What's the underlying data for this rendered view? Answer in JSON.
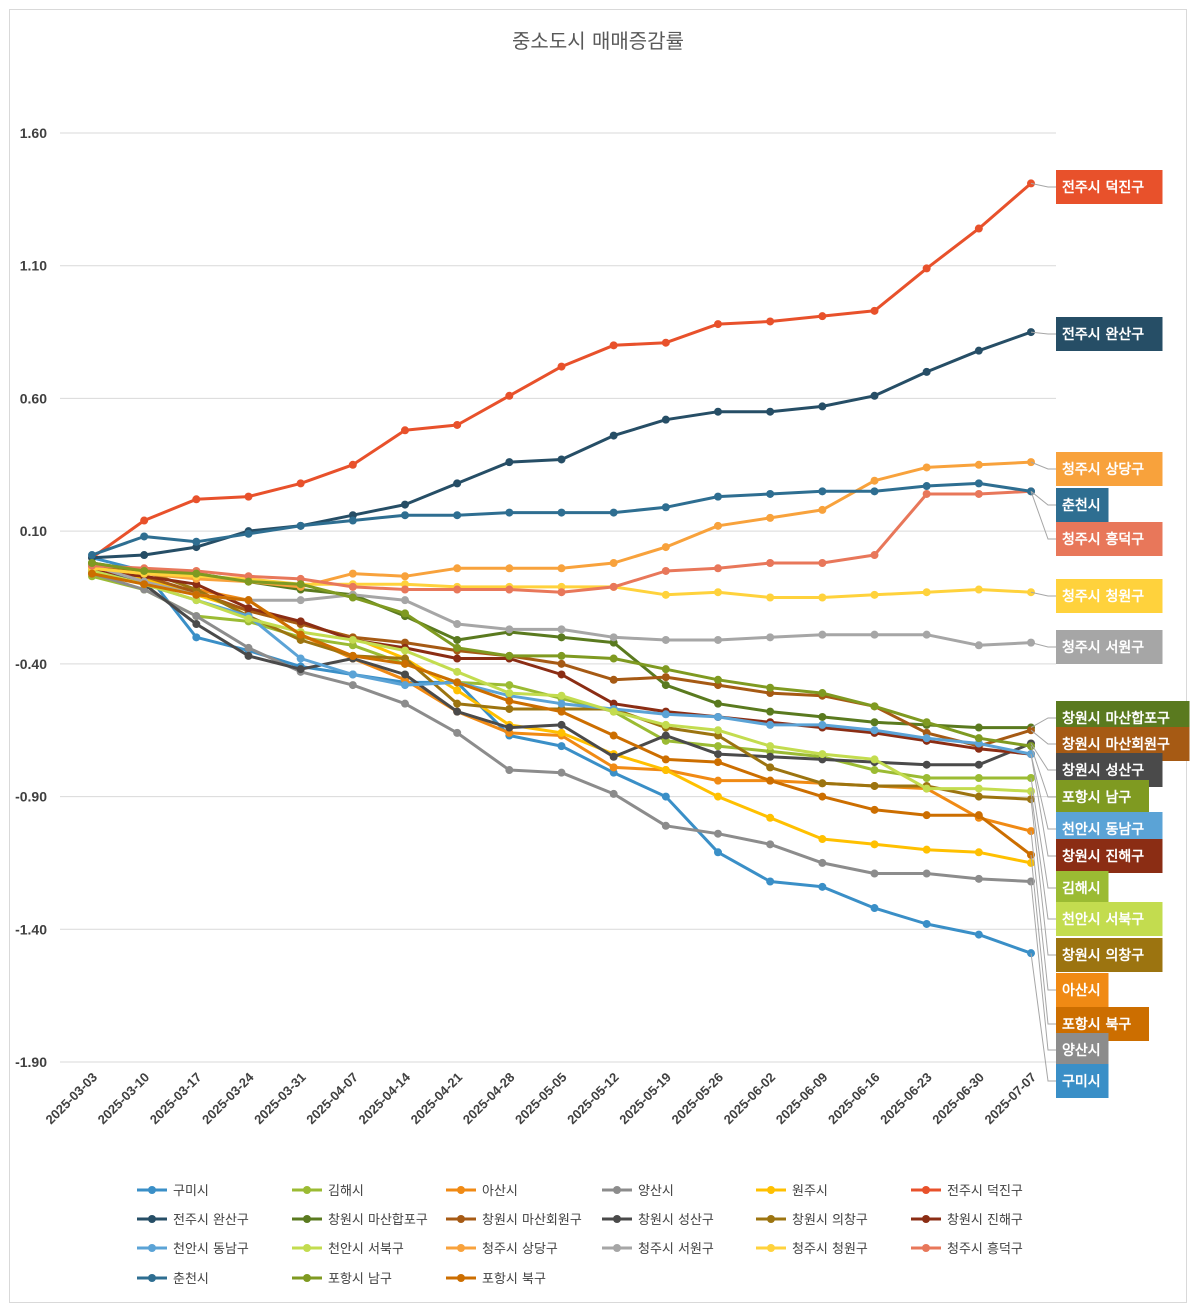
{
  "chart_data": {
    "type": "line",
    "title": "중소도시 매매증감률",
    "xlabel": "",
    "ylabel": "",
    "ylim": [
      -1.9,
      1.6
    ],
    "yticks": [
      "1.60",
      "1.10",
      "0.60",
      "0.10",
      "-0.40",
      "-0.90",
      "-1.40",
      "-1.90"
    ],
    "grid": true,
    "legend_position": "bottom",
    "categories": [
      "2025-03-03",
      "2025-03-10",
      "2025-03-17",
      "2025-03-24",
      "2025-03-31",
      "2025-04-07",
      "2025-04-14",
      "2025-04-21",
      "2025-04-28",
      "2025-05-05",
      "2025-05-12",
      "2025-05-19",
      "2025-05-26",
      "2025-06-02",
      "2025-06-09",
      "2025-06-16",
      "2025-06-23",
      "2025-06-30",
      "2025-07-07"
    ],
    "series": [
      {
        "name": "구미시",
        "color": "#3a8fc7",
        "values": [
          0.0,
          -0.05,
          -0.3,
          -0.35,
          -0.41,
          -0.44,
          -0.47,
          -0.47,
          -0.67,
          -0.71,
          -0.81,
          -0.9,
          -1.11,
          -1.22,
          -1.24,
          -1.32,
          -1.38,
          -1.42,
          -1.49
        ]
      },
      {
        "name": "김해시",
        "color": "#9bbb33",
        "values": [
          -0.07,
          -0.12,
          -0.22,
          -0.24,
          -0.3,
          -0.33,
          -0.4,
          -0.47,
          -0.48,
          -0.53,
          -0.58,
          -0.69,
          -0.71,
          -0.73,
          -0.75,
          -0.8,
          -0.83,
          -0.83,
          -0.83
        ]
      },
      {
        "name": "아산시",
        "color": "#f08a14",
        "values": [
          -0.05,
          -0.1,
          -0.12,
          -0.16,
          -0.29,
          -0.38,
          -0.46,
          -0.58,
          -0.66,
          -0.67,
          -0.79,
          -0.8,
          -0.84,
          -0.84,
          -0.85,
          -0.86,
          -0.87,
          -0.98,
          -1.03
        ]
      },
      {
        "name": "양산시",
        "color": "#8c8c8c",
        "values": [
          -0.06,
          -0.12,
          -0.22,
          -0.34,
          -0.43,
          -0.48,
          -0.55,
          -0.66,
          -0.8,
          -0.81,
          -0.89,
          -1.01,
          -1.04,
          -1.08,
          -1.15,
          -1.19,
          -1.19,
          -1.21,
          -1.22
        ]
      },
      {
        "name": "원주시",
        "color": "#ffc000",
        "values": [
          -0.05,
          -0.08,
          -0.14,
          -0.2,
          -0.25,
          -0.3,
          -0.38,
          -0.5,
          -0.63,
          -0.66,
          -0.74,
          -0.8,
          -0.9,
          -0.98,
          -1.06,
          -1.08,
          -1.1,
          -1.11,
          -1.15
        ]
      },
      {
        "name": "전주시 덕진구",
        "color": "#e8512b",
        "values": [
          0.0,
          0.14,
          0.22,
          0.23,
          0.28,
          0.35,
          0.48,
          0.5,
          0.61,
          0.72,
          0.8,
          0.81,
          0.88,
          0.89,
          0.91,
          0.93,
          1.09,
          1.24,
          1.41
        ]
      },
      {
        "name": "전주시 완산구",
        "color": "#264e66",
        "values": [
          0.0,
          0.01,
          0.04,
          0.1,
          0.12,
          0.16,
          0.2,
          0.28,
          0.36,
          0.37,
          0.46,
          0.52,
          0.55,
          0.55,
          0.57,
          0.61,
          0.7,
          0.78,
          0.85
        ]
      },
      {
        "name": "창원시 마산합포구",
        "color": "#5a7a1f",
        "values": [
          -0.02,
          -0.05,
          -0.06,
          -0.09,
          -0.12,
          -0.14,
          -0.22,
          -0.31,
          -0.28,
          -0.3,
          -0.32,
          -0.48,
          -0.55,
          -0.58,
          -0.6,
          -0.62,
          -0.63,
          -0.64,
          -0.64
        ]
      },
      {
        "name": "창원시 마산회원구",
        "color": "#a65a14",
        "values": [
          -0.05,
          -0.07,
          -0.13,
          -0.2,
          -0.25,
          -0.3,
          -0.32,
          -0.35,
          -0.37,
          -0.4,
          -0.46,
          -0.45,
          -0.48,
          -0.51,
          -0.52,
          -0.56,
          -0.66,
          -0.71,
          -0.65
        ]
      },
      {
        "name": "창원시 성산구",
        "color": "#4a4a4a",
        "values": [
          -0.03,
          -0.1,
          -0.25,
          -0.37,
          -0.42,
          -0.38,
          -0.44,
          -0.58,
          -0.64,
          -0.63,
          -0.75,
          -0.67,
          -0.74,
          -0.75,
          -0.76,
          -0.77,
          -0.78,
          -0.78,
          -0.7
        ]
      },
      {
        "name": "창원시 의창구",
        "color": "#9c7410",
        "values": [
          -0.04,
          -0.05,
          -0.12,
          -0.22,
          -0.31,
          -0.37,
          -0.38,
          -0.55,
          -0.57,
          -0.57,
          -0.57,
          -0.64,
          -0.67,
          -0.79,
          -0.85,
          -0.86,
          -0.86,
          -0.9,
          -0.91
        ]
      },
      {
        "name": "창원시 진해구",
        "color": "#8b2d14",
        "values": [
          -0.05,
          -0.07,
          -0.1,
          -0.19,
          -0.24,
          -0.31,
          -0.34,
          -0.38,
          -0.38,
          -0.44,
          -0.55,
          -0.58,
          -0.6,
          -0.62,
          -0.64,
          -0.66,
          -0.69,
          -0.72,
          -0.74
        ]
      },
      {
        "name": "천안시 동남구",
        "color": "#5ba3d6",
        "values": [
          -0.05,
          -0.1,
          -0.16,
          -0.22,
          -0.38,
          -0.44,
          -0.48,
          -0.47,
          -0.52,
          -0.55,
          -0.57,
          -0.59,
          -0.6,
          -0.63,
          -0.63,
          -0.65,
          -0.68,
          -0.7,
          -0.74
        ]
      },
      {
        "name": "천안시 서북구",
        "color": "#c3dc4f",
        "values": [
          -0.05,
          -0.1,
          -0.16,
          -0.23,
          -0.28,
          -0.31,
          -0.35,
          -0.43,
          -0.51,
          -0.52,
          -0.58,
          -0.63,
          -0.65,
          -0.71,
          -0.74,
          -0.76,
          -0.87,
          -0.87,
          -0.88
        ]
      },
      {
        "name": "청주시 상당구",
        "color": "#f8a23c",
        "values": [
          -0.04,
          -0.06,
          -0.08,
          -0.09,
          -0.11,
          -0.06,
          -0.07,
          -0.04,
          -0.04,
          -0.04,
          -0.02,
          0.04,
          0.12,
          0.15,
          0.18,
          0.29,
          0.34,
          0.35,
          0.36
        ]
      },
      {
        "name": "청주시 서원구",
        "color": "#a6a6a6",
        "values": [
          -0.03,
          -0.09,
          -0.14,
          -0.16,
          -0.16,
          -0.14,
          -0.16,
          -0.25,
          -0.27,
          -0.27,
          -0.3,
          -0.31,
          -0.31,
          -0.3,
          -0.29,
          -0.29,
          -0.29,
          -0.33,
          -0.32
        ]
      },
      {
        "name": "청주시 청원구",
        "color": "#ffd23c",
        "values": [
          -0.04,
          -0.06,
          -0.07,
          -0.08,
          -0.1,
          -0.1,
          -0.1,
          -0.11,
          -0.11,
          -0.11,
          -0.11,
          -0.14,
          -0.13,
          -0.15,
          -0.15,
          -0.14,
          -0.13,
          -0.12,
          -0.13
        ]
      },
      {
        "name": "청주시 흥덕구",
        "color": "#e8775a",
        "values": [
          -0.03,
          -0.04,
          -0.05,
          -0.07,
          -0.08,
          -0.11,
          -0.12,
          -0.12,
          -0.12,
          -0.13,
          -0.11,
          -0.05,
          -0.04,
          -0.02,
          -0.02,
          0.01,
          0.24,
          0.24,
          0.25
        ]
      },
      {
        "name": "춘천시",
        "color": "#2e6e91",
        "values": [
          0.01,
          0.08,
          0.06,
          0.09,
          0.12,
          0.14,
          0.16,
          0.16,
          0.17,
          0.17,
          0.17,
          0.19,
          0.23,
          0.24,
          0.25,
          0.25,
          0.27,
          0.28,
          0.25
        ]
      },
      {
        "name": "포항시 남구",
        "color": "#7f9a21",
        "values": [
          -0.02,
          -0.05,
          -0.06,
          -0.09,
          -0.1,
          -0.15,
          -0.21,
          -0.34,
          -0.37,
          -0.37,
          -0.38,
          -0.42,
          -0.46,
          -0.49,
          -0.51,
          -0.56,
          -0.62,
          -0.68,
          -0.71
        ]
      },
      {
        "name": "포항시 북구",
        "color": "#cc6e00",
        "values": [
          -0.06,
          -0.1,
          -0.14,
          -0.16,
          -0.29,
          -0.37,
          -0.4,
          -0.47,
          -0.54,
          -0.58,
          -0.67,
          -0.76,
          -0.77,
          -0.84,
          -0.9,
          -0.95,
          -0.97,
          -0.97,
          -1.12
        ]
      }
    ],
    "end_labels": [
      {
        "text": "전주시 덕진구",
        "color": "#e8512b"
      },
      {
        "text": "전주시 완산구",
        "color": "#264e66"
      },
      {
        "text": "청주시 상당구",
        "color": "#f8a23c"
      },
      {
        "text": "춘천시",
        "color": "#2e6e91"
      },
      {
        "text": "청주시 흥덕구",
        "color": "#e8775a"
      },
      {
        "text": "청주시 청원구",
        "color": "#ffd23c"
      },
      {
        "text": "청주시 서원구",
        "color": "#a6a6a6"
      },
      {
        "text": "창원시 마산합포구",
        "color": "#5a7a1f"
      },
      {
        "text": "창원시 마산회원구",
        "color": "#a65a14"
      },
      {
        "text": "창원시 성산구",
        "color": "#4a4a4a"
      },
      {
        "text": "포항시 남구",
        "color": "#7f9a21"
      },
      {
        "text": "천안시 동남구",
        "color": "#5ba3d6"
      },
      {
        "text": "창원시 진해구",
        "color": "#8b2d14"
      },
      {
        "text": "김해시",
        "color": "#9bbb33"
      },
      {
        "text": "천안시 서북구",
        "color": "#c3dc4f"
      },
      {
        "text": "창원시 의창구",
        "color": "#9c7410"
      },
      {
        "text": "아산시",
        "color": "#f08a14"
      },
      {
        "text": "포항시 북구",
        "color": "#cc6e00"
      },
      {
        "text": "양산시",
        "color": "#8c8c8c"
      },
      {
        "text": "구미시",
        "color": "#3a8fc7"
      }
    ]
  }
}
